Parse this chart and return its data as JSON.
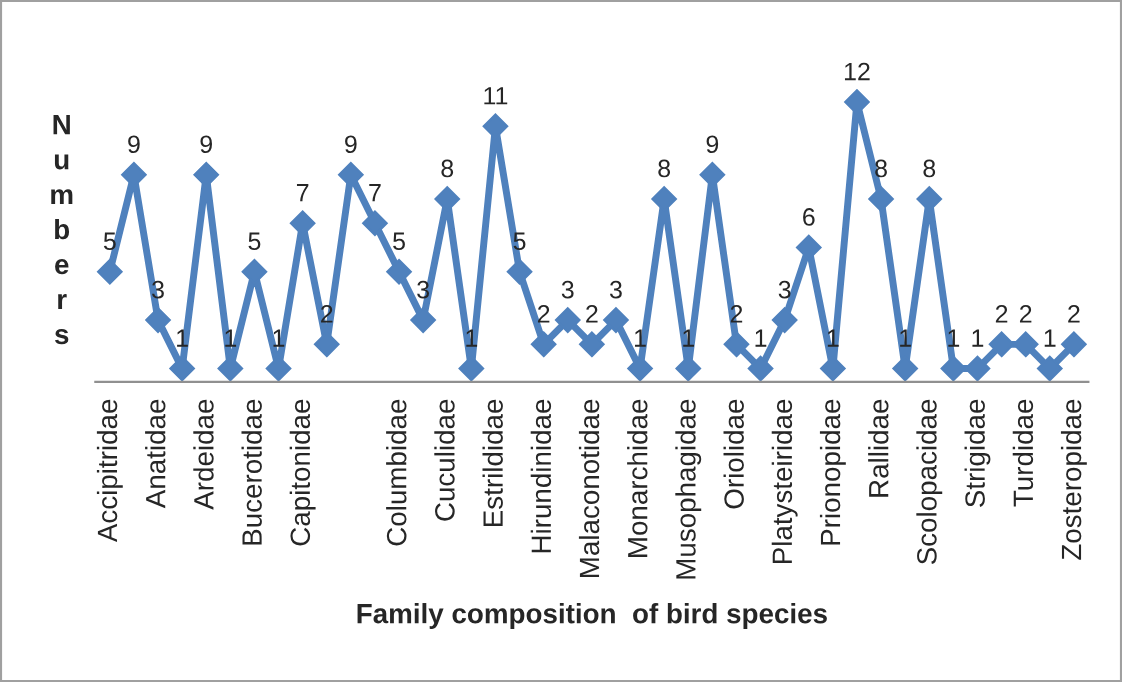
{
  "chart_data": {
    "type": "line",
    "xlabel": "Family composition  of bird species",
    "ylabel": "Numbers",
    "categories": [
      "Accipitridae",
      null,
      "Anatidae",
      null,
      "Ardeidae",
      null,
      "Bucerotidae",
      null,
      "Capitonidae",
      null,
      null,
      null,
      "Columbidae",
      null,
      "Cuculidae",
      null,
      "Estrildidae",
      null,
      "Hirundinidae",
      null,
      "Malaconotidae",
      null,
      "Monarchidae",
      null,
      "Musophagidae",
      null,
      "Oriolidae",
      null,
      "Platysteiridae",
      null,
      "Prionopidae",
      null,
      "Rallidae",
      null,
      "Scolopacidae",
      null,
      "Strigidae",
      null,
      "Turdidae",
      null,
      "Zosteropidae"
    ],
    "series": [
      {
        "color": "#4f81bd",
        "values": [
          5,
          9,
          3,
          1,
          9,
          1,
          5,
          1,
          7,
          2,
          9,
          7,
          5,
          3,
          8,
          1,
          11,
          5,
          2,
          3,
          2,
          3,
          1,
          8,
          1,
          9,
          2,
          1,
          3,
          6,
          1,
          12,
          8,
          1,
          8,
          1,
          1,
          2,
          2,
          1,
          2
        ]
      }
    ],
    "tick_labels": "x",
    "marker": "diamond",
    "data_labels": true
  }
}
